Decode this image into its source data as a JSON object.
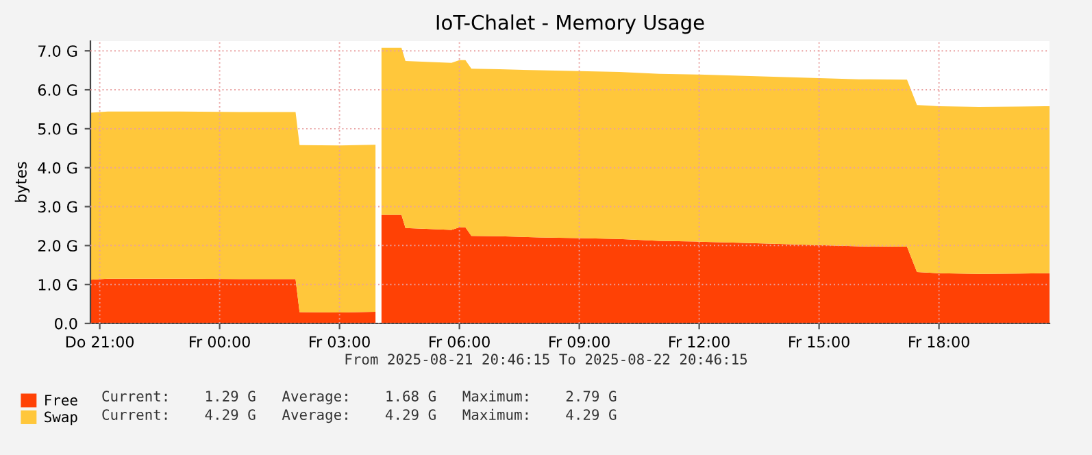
{
  "chart_data": {
    "type": "area",
    "stacked": true,
    "title": "IoT-Chalet - Memory Usage",
    "ylabel": "bytes",
    "x": [
      "2025-08-21T20:46",
      "2025-08-21T21:12",
      "2025-08-21T23:00",
      "2025-08-22T00:30",
      "2025-08-22T01:54",
      "2025-08-22T02:00",
      "2025-08-22T03:00",
      "2025-08-22T03:54",
      "2025-08-22T03:57",
      "2025-08-22T04:03",
      "2025-08-22T04:33",
      "2025-08-22T04:39",
      "2025-08-22T05:48",
      "2025-08-22T06:00",
      "2025-08-22T06:09",
      "2025-08-22T06:18",
      "2025-08-22T07:00",
      "2025-08-22T08:00",
      "2025-08-22T09:00",
      "2025-08-22T10:00",
      "2025-08-22T11:00",
      "2025-08-22T12:00",
      "2025-08-22T13:00",
      "2025-08-22T14:00",
      "2025-08-22T15:00",
      "2025-08-22T16:00",
      "2025-08-22T17:12",
      "2025-08-22T17:27",
      "2025-08-22T18:00",
      "2025-08-22T19:00",
      "2025-08-22T20:00",
      "2025-08-22T20:46"
    ],
    "series": [
      {
        "name": "Free",
        "color": "#ff4105",
        "values": [
          1.12,
          1.15,
          1.15,
          1.14,
          1.14,
          0.29,
          0.28,
          0.3,
          null,
          2.79,
          2.79,
          2.45,
          2.4,
          2.47,
          2.47,
          2.25,
          2.24,
          2.21,
          2.19,
          2.17,
          2.12,
          2.1,
          2.07,
          2.04,
          2.01,
          1.98,
          1.97,
          1.32,
          1.29,
          1.27,
          1.28,
          1.29
        ]
      },
      {
        "name": "Swap",
        "color": "#ffc73b",
        "values": [
          4.29,
          4.29,
          4.29,
          4.29,
          4.29,
          4.29,
          4.29,
          4.29,
          null,
          4.29,
          4.29,
          4.29,
          4.29,
          4.29,
          4.29,
          4.29,
          4.29,
          4.29,
          4.29,
          4.29,
          4.29,
          4.29,
          4.29,
          4.29,
          4.29,
          4.29,
          4.29,
          4.29,
          4.29,
          4.29,
          4.29,
          4.29
        ]
      }
    ],
    "xlim": [
      "2025-08-21T20:46",
      "2025-08-22T20:46"
    ],
    "xticks": [
      {
        "value": "2025-08-21T21:00",
        "label": "Do 21:00"
      },
      {
        "value": "2025-08-22T00:00",
        "label": "Fr 00:00"
      },
      {
        "value": "2025-08-22T03:00",
        "label": "Fr 03:00"
      },
      {
        "value": "2025-08-22T06:00",
        "label": "Fr 06:00"
      },
      {
        "value": "2025-08-22T09:00",
        "label": "Fr 09:00"
      },
      {
        "value": "2025-08-22T12:00",
        "label": "Fr 12:00"
      },
      {
        "value": "2025-08-22T15:00",
        "label": "Fr 15:00"
      },
      {
        "value": "2025-08-22T18:00",
        "label": "Fr 18:00"
      }
    ],
    "ylim": [
      0,
      7.25
    ],
    "yticks": [
      {
        "value": 0,
        "label": "0.0"
      },
      {
        "value": 1,
        "label": "1.0 G"
      },
      {
        "value": 2,
        "label": "2.0 G"
      },
      {
        "value": 3,
        "label": "3.0 G"
      },
      {
        "value": 4,
        "label": "4.0 G"
      },
      {
        "value": 5,
        "label": "5.0 G"
      },
      {
        "value": 6,
        "label": "6.0 G"
      },
      {
        "value": 7,
        "label": "7.0 G"
      }
    ],
    "grid": true,
    "legend": "bottom left",
    "annotations": [
      "From 2025-08-21 20:46:15 To 2025-08-22 20:46:15",
      "Current:    1.29 G   Average:    1.68 G   Maximum:    2.79 G",
      "Current:    4.29 G   Average:    4.29 G   Maximum:    4.29 G"
    ]
  }
}
